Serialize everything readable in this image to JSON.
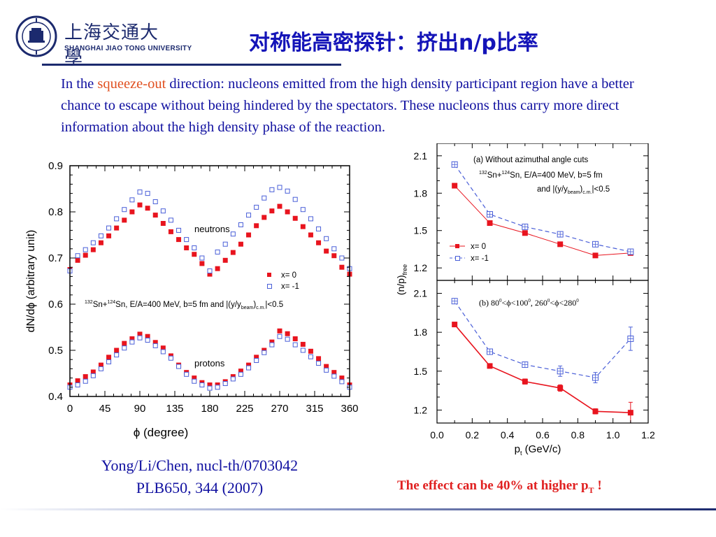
{
  "header": {
    "logo_cn": "上海交通大學",
    "logo_en": "SHANGHAI  JIAO TONG  UNIVERSITY",
    "logo_year": "1896",
    "title": "对称能高密探针：挤出n/p比率"
  },
  "body": {
    "text_start": "In the ",
    "text_highlight": "squeeze-out",
    "text_rest": " direction: nucleons emitted from the high density participant region have a better chance to escape without being hindered by the spectators. These nucleons thus carry more direct information about the high density phase of the reaction."
  },
  "reference": {
    "line1": "Yong/Li/Chen, nucl-th/0703042",
    "line2": "PLB650, 344 (2007)"
  },
  "effect": {
    "text": "The effect can be 40% at higher p",
    "sub": "T",
    "suffix": " !"
  },
  "colors": {
    "title": "#1414b8",
    "body": "#1010a0",
    "highlight": "#e05020",
    "red_series": "#e8141e",
    "blue_series": "#4a5fd8"
  },
  "chart_data": [
    {
      "type": "scatter",
      "xlabel": "ϕ (degree)",
      "ylabel": "dN/dϕ (arbitrary unit)",
      "xlim": [
        0,
        360
      ],
      "ylim": [
        0.4,
        0.9
      ],
      "xticks": [
        "0",
        "45",
        "90",
        "135",
        "180",
        "225",
        "270",
        "315",
        "360"
      ],
      "yticks": [
        "0.4",
        "0.5",
        "0.6",
        "0.7",
        "0.8",
        "0.9"
      ],
      "legend": [
        "x= 0",
        "x= -1"
      ],
      "legend_position": "right",
      "annotations": {
        "neutrons": "neutrons",
        "protons": "protons",
        "reaction_a": "132",
        "reaction_b": "Sn+",
        "reaction_c": "124",
        "reaction_d": "Sn, E/A=400 MeV, b=5 fm and |(y/y",
        "reaction_e": "beam",
        "reaction_f": ")",
        "reaction_g": "c.m.",
        "reaction_h": "|<0.5"
      },
      "x": [
        0,
        10,
        20,
        30,
        40,
        50,
        60,
        70,
        80,
        90,
        100,
        110,
        120,
        130,
        140,
        150,
        160,
        170,
        180,
        190,
        200,
        210,
        220,
        230,
        240,
        250,
        260,
        270,
        280,
        290,
        300,
        310,
        320,
        330,
        340,
        350,
        360
      ],
      "series": [
        {
          "name": "x= 0",
          "group": "neutrons",
          "values": [
            0.675,
            0.695,
            0.706,
            0.718,
            0.733,
            0.748,
            0.765,
            0.782,
            0.8,
            0.815,
            0.808,
            0.793,
            0.775,
            0.757,
            0.74,
            0.722,
            0.708,
            0.688,
            0.665,
            0.677,
            0.695,
            0.712,
            0.73,
            0.75,
            0.77,
            0.788,
            0.802,
            0.812,
            0.8,
            0.786,
            0.768,
            0.75,
            0.733,
            0.715,
            0.705,
            0.68,
            0.665
          ]
        },
        {
          "name": "x= -1",
          "group": "neutrons",
          "values": [
            0.672,
            0.705,
            0.718,
            0.733,
            0.748,
            0.765,
            0.785,
            0.805,
            0.826,
            0.843,
            0.84,
            0.822,
            0.802,
            0.782,
            0.76,
            0.74,
            0.722,
            0.7,
            0.672,
            0.713,
            0.73,
            0.752,
            0.772,
            0.793,
            0.81,
            0.83,
            0.848,
            0.853,
            0.845,
            0.827,
            0.805,
            0.785,
            0.763,
            0.742,
            0.72,
            0.7,
            0.677
          ]
        },
        {
          "name": "x= 0",
          "group": "protons",
          "values": [
            0.425,
            0.434,
            0.443,
            0.453,
            0.468,
            0.485,
            0.5,
            0.515,
            0.525,
            0.535,
            0.53,
            0.517,
            0.505,
            0.488,
            0.468,
            0.452,
            0.44,
            0.43,
            0.425,
            0.425,
            0.432,
            0.443,
            0.455,
            0.468,
            0.485,
            0.5,
            0.518,
            0.542,
            0.536,
            0.525,
            0.513,
            0.498,
            0.482,
            0.465,
            0.452,
            0.44,
            0.425
          ]
        },
        {
          "name": "x= -1",
          "group": "protons",
          "values": [
            0.42,
            0.425,
            0.433,
            0.445,
            0.46,
            0.475,
            0.49,
            0.505,
            0.518,
            0.527,
            0.522,
            0.51,
            0.497,
            0.483,
            0.465,
            0.448,
            0.433,
            0.425,
            0.418,
            0.42,
            0.428,
            0.438,
            0.448,
            0.462,
            0.478,
            0.495,
            0.512,
            0.53,
            0.524,
            0.512,
            0.5,
            0.486,
            0.472,
            0.457,
            0.444,
            0.432,
            0.42
          ]
        }
      ]
    },
    {
      "type": "line",
      "panel": "a",
      "xlabel": "p",
      "xlabel_sub": "t",
      "xlabel_unit": " (GeV/c)",
      "ylabel": "(n/p)",
      "ylabel_sub": "free",
      "xlim": [
        0,
        1.2
      ],
      "ylim": [
        1.1,
        2.2
      ],
      "xticks": [
        "0.0",
        "0.2",
        "0.4",
        "0.6",
        "0.8",
        "1.0",
        "1.2"
      ],
      "yticks": [
        "1.2",
        "1.5",
        "1.8",
        "2.1"
      ],
      "annotation_1": "(a)  Without azimuthal angle cuts",
      "annotation_2a": "132",
      "annotation_2b": "Sn+",
      "annotation_2c": "124",
      "annotation_2d": "Sn, E/A=400 MeV, b=5 fm",
      "annotation_3a": "and |(y/y",
      "annotation_3b": "beam",
      "annotation_3c": ")",
      "annotation_3d": "c.m.",
      "annotation_3e": "|<0.5",
      "legend": [
        "x= 0",
        "x= -1"
      ],
      "legend_position": "bottom-left",
      "x": [
        0.1,
        0.3,
        0.5,
        0.7,
        0.9,
        1.1
      ],
      "series": [
        {
          "name": "x= 0",
          "values": [
            1.86,
            1.56,
            1.48,
            1.39,
            1.3,
            1.32
          ]
        },
        {
          "name": "x= -1",
          "values": [
            2.03,
            1.63,
            1.53,
            1.47,
            1.39,
            1.33
          ]
        }
      ]
    },
    {
      "type": "line",
      "panel": "b",
      "xlabel": "p",
      "xlabel_sub": "t",
      "xlabel_unit": " (GeV/c)",
      "xlim": [
        0,
        1.2
      ],
      "ylim": [
        1.1,
        2.2
      ],
      "xticks": [
        "0.0",
        "0.2",
        "0.4",
        "0.6",
        "0.8",
        "1.0",
        "1.2"
      ],
      "yticks": [
        "1.2",
        "1.5",
        "1.8",
        "2.1"
      ],
      "annotation_1": "(b)  80",
      "annotation_1_deg": "0",
      "annotation_2": "<ϕ<100",
      "annotation_2_deg": "0",
      "annotation_3": ", 260",
      "annotation_3_deg": "0",
      "annotation_4": "<ϕ<280",
      "annotation_4_deg": "0",
      "x": [
        0.1,
        0.3,
        0.5,
        0.7,
        0.9,
        1.1
      ],
      "series": [
        {
          "name": "x= 0",
          "values": [
            1.86,
            1.54,
            1.42,
            1.37,
            1.19,
            1.18
          ],
          "err": [
            0.01,
            0.015,
            0.02,
            0.025,
            0.02,
            0.08
          ]
        },
        {
          "name": "x= -1",
          "values": [
            2.04,
            1.65,
            1.55,
            1.5,
            1.45,
            1.75
          ],
          "err": [
            0.01,
            0.015,
            0.02,
            0.04,
            0.04,
            0.09
          ]
        }
      ]
    }
  ]
}
